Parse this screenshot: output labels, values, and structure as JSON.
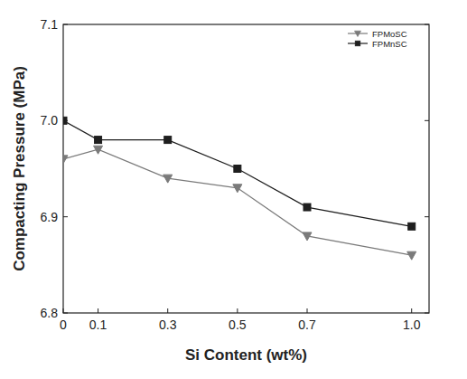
{
  "chart_data": {
    "type": "line",
    "x_label": "Si Content (wt%)",
    "y_label": "Compacting Pressure (MPa)",
    "x": [
      0,
      0.1,
      0.3,
      0.5,
      0.7,
      1.0
    ],
    "series": [
      {
        "name": "FPMoSC",
        "color": "#7a7a7a",
        "marker": "triangle-down",
        "line_style": "solid",
        "values": [
          6.96,
          6.97,
          6.94,
          6.93,
          6.88,
          6.86
        ]
      },
      {
        "name": "FPMnSC",
        "color": "#1e1e1e",
        "marker": "square",
        "line_style": "solid",
        "values": [
          7.0,
          6.98,
          6.98,
          6.95,
          6.91,
          6.89
        ]
      }
    ],
    "xlim": [
      0,
      1.05
    ],
    "xticks": [
      0,
      0.1,
      0.3,
      0.5,
      0.7,
      {
        "value": 1,
        "label": "1.0"
      }
    ],
    "ylim": [
      6.8,
      7.1
    ],
    "yticks": [
      6.8,
      6.9,
      {
        "value": 7,
        "label": "7.0"
      },
      7.1
    ],
    "grid": false,
    "legend": "upper-right"
  }
}
